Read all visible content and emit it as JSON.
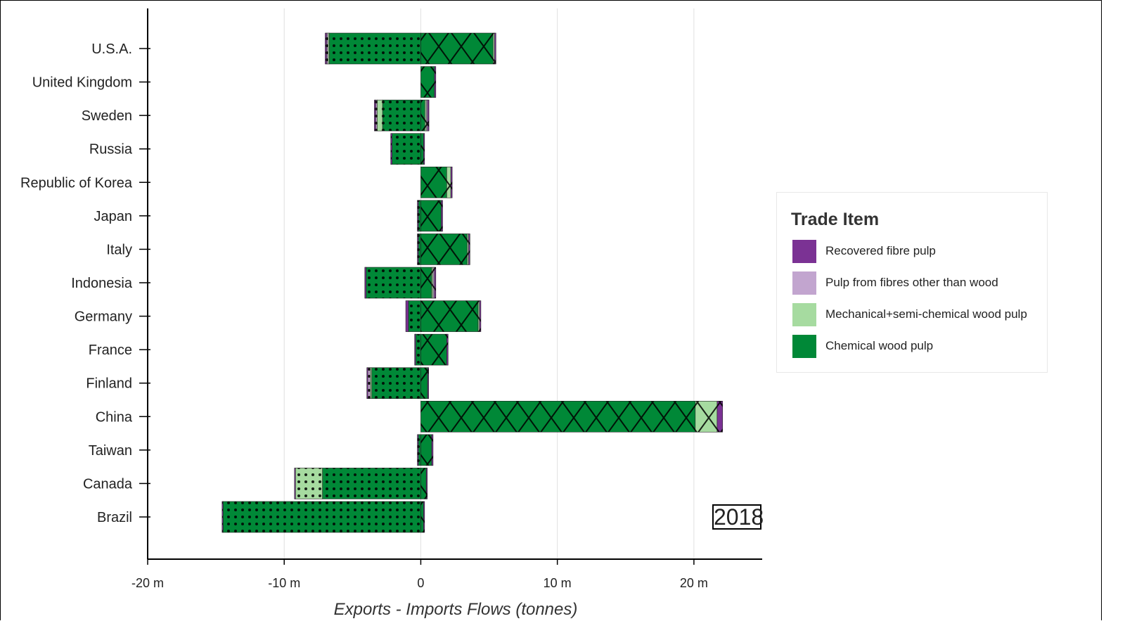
{
  "chart_data": {
    "type": "bar",
    "orientation": "horizontal",
    "stacked": "diverging",
    "xlabel": "Exports - Imports Flows (tonnes)",
    "xlim": [
      -20000000,
      25000000
    ],
    "xticks": [
      -20000000,
      -10000000,
      0,
      10000000,
      20000000
    ],
    "xtick_labels": [
      "-20 m",
      "-10 m",
      "0",
      "10 m",
      "20 m"
    ],
    "grid": "vertical",
    "year": "2018",
    "legend": {
      "title": "Trade Item",
      "placement": "right",
      "items": [
        {
          "label": "Recovered fibre pulp",
          "color": "#7b3294"
        },
        {
          "label": "Pulp from fibres other than wood",
          "color": "#c2a5cf"
        },
        {
          "label": "Mechanical+semi-chemical wood pulp",
          "color": "#a6dba0"
        },
        {
          "label": "Chemical wood pulp",
          "color": "#008837"
        }
      ]
    },
    "patterns": {
      "negative": "dots",
      "positive": "crosshatch"
    },
    "categories": [
      "U.S.A.",
      "United Kingdom",
      "Sweden",
      "Russia",
      "Republic of Korea",
      "Japan",
      "Italy",
      "Indonesia",
      "Germany",
      "France",
      "Finland",
      "China",
      "Taiwan",
      "Canada",
      "Brazil"
    ],
    "series": [
      {
        "name": "Chemical wood pulp",
        "color": "#008837",
        "values": [
          [
            -6.7,
            5.3
          ],
          [
            0,
            1.0
          ],
          [
            -2.8,
            0.3
          ],
          [
            -2.1,
            0.2
          ],
          [
            0,
            1.9
          ],
          [
            -0.2,
            1.5
          ],
          [
            -0.2,
            3.4
          ],
          [
            -4.0,
            0.8
          ],
          [
            -0.9,
            4.2
          ],
          [
            -0.4,
            1.9
          ],
          [
            -3.6,
            0.5
          ],
          [
            0,
            20.1
          ],
          [
            -0.2,
            0.8
          ],
          [
            -7.2,
            0.4
          ],
          [
            -14.5,
            0.2
          ]
        ]
      },
      {
        "name": "Mechanical+semi-chemical wood pulp",
        "color": "#a6dba0",
        "values": [
          [
            -0.1,
            0.1
          ],
          [
            0,
            0
          ],
          [
            -0.4,
            0.1
          ],
          [
            0,
            0
          ],
          [
            0,
            0.3
          ],
          [
            0,
            0
          ],
          [
            0,
            0.1
          ],
          [
            0,
            0.1
          ],
          [
            0,
            0.1
          ],
          [
            0,
            0
          ],
          [
            -0.1,
            0
          ],
          [
            0,
            1.6
          ],
          [
            0,
            0
          ],
          [
            -2.0,
            0
          ],
          [
            0,
            0
          ]
        ]
      },
      {
        "name": "Pulp from fibres other than wood",
        "color": "#c2a5cf",
        "values": [
          [
            -0.1,
            0
          ],
          [
            0,
            0
          ],
          [
            -0.1,
            0.1
          ],
          [
            0,
            0
          ],
          [
            0,
            0
          ],
          [
            0,
            0
          ],
          [
            0,
            0
          ],
          [
            0,
            0.1
          ],
          [
            0,
            0
          ],
          [
            0,
            0
          ],
          [
            -0.2,
            0
          ],
          [
            0,
            0
          ],
          [
            0,
            0
          ],
          [
            0,
            0
          ],
          [
            0,
            0
          ]
        ]
      },
      {
        "name": "Recovered fibre pulp",
        "color": "#7b3294",
        "values": [
          [
            -0.1,
            0.1
          ],
          [
            0,
            0.1
          ],
          [
            -0.1,
            0.1
          ],
          [
            -0.1,
            0.05
          ],
          [
            0,
            0.1
          ],
          [
            -0.05,
            0.1
          ],
          [
            -0.05,
            0.1
          ],
          [
            -0.1,
            0.1
          ],
          [
            -0.2,
            0.1
          ],
          [
            -0.05,
            0.1
          ],
          [
            -0.05,
            0.05
          ],
          [
            0,
            0.4
          ],
          [
            -0.05,
            0.1
          ],
          [
            -0.05,
            0.05
          ],
          [
            -0.05,
            0.05
          ]
        ]
      }
    ],
    "value_units": "millions of tonnes; each pair is [exports side (negative), imports side (positive)]"
  }
}
